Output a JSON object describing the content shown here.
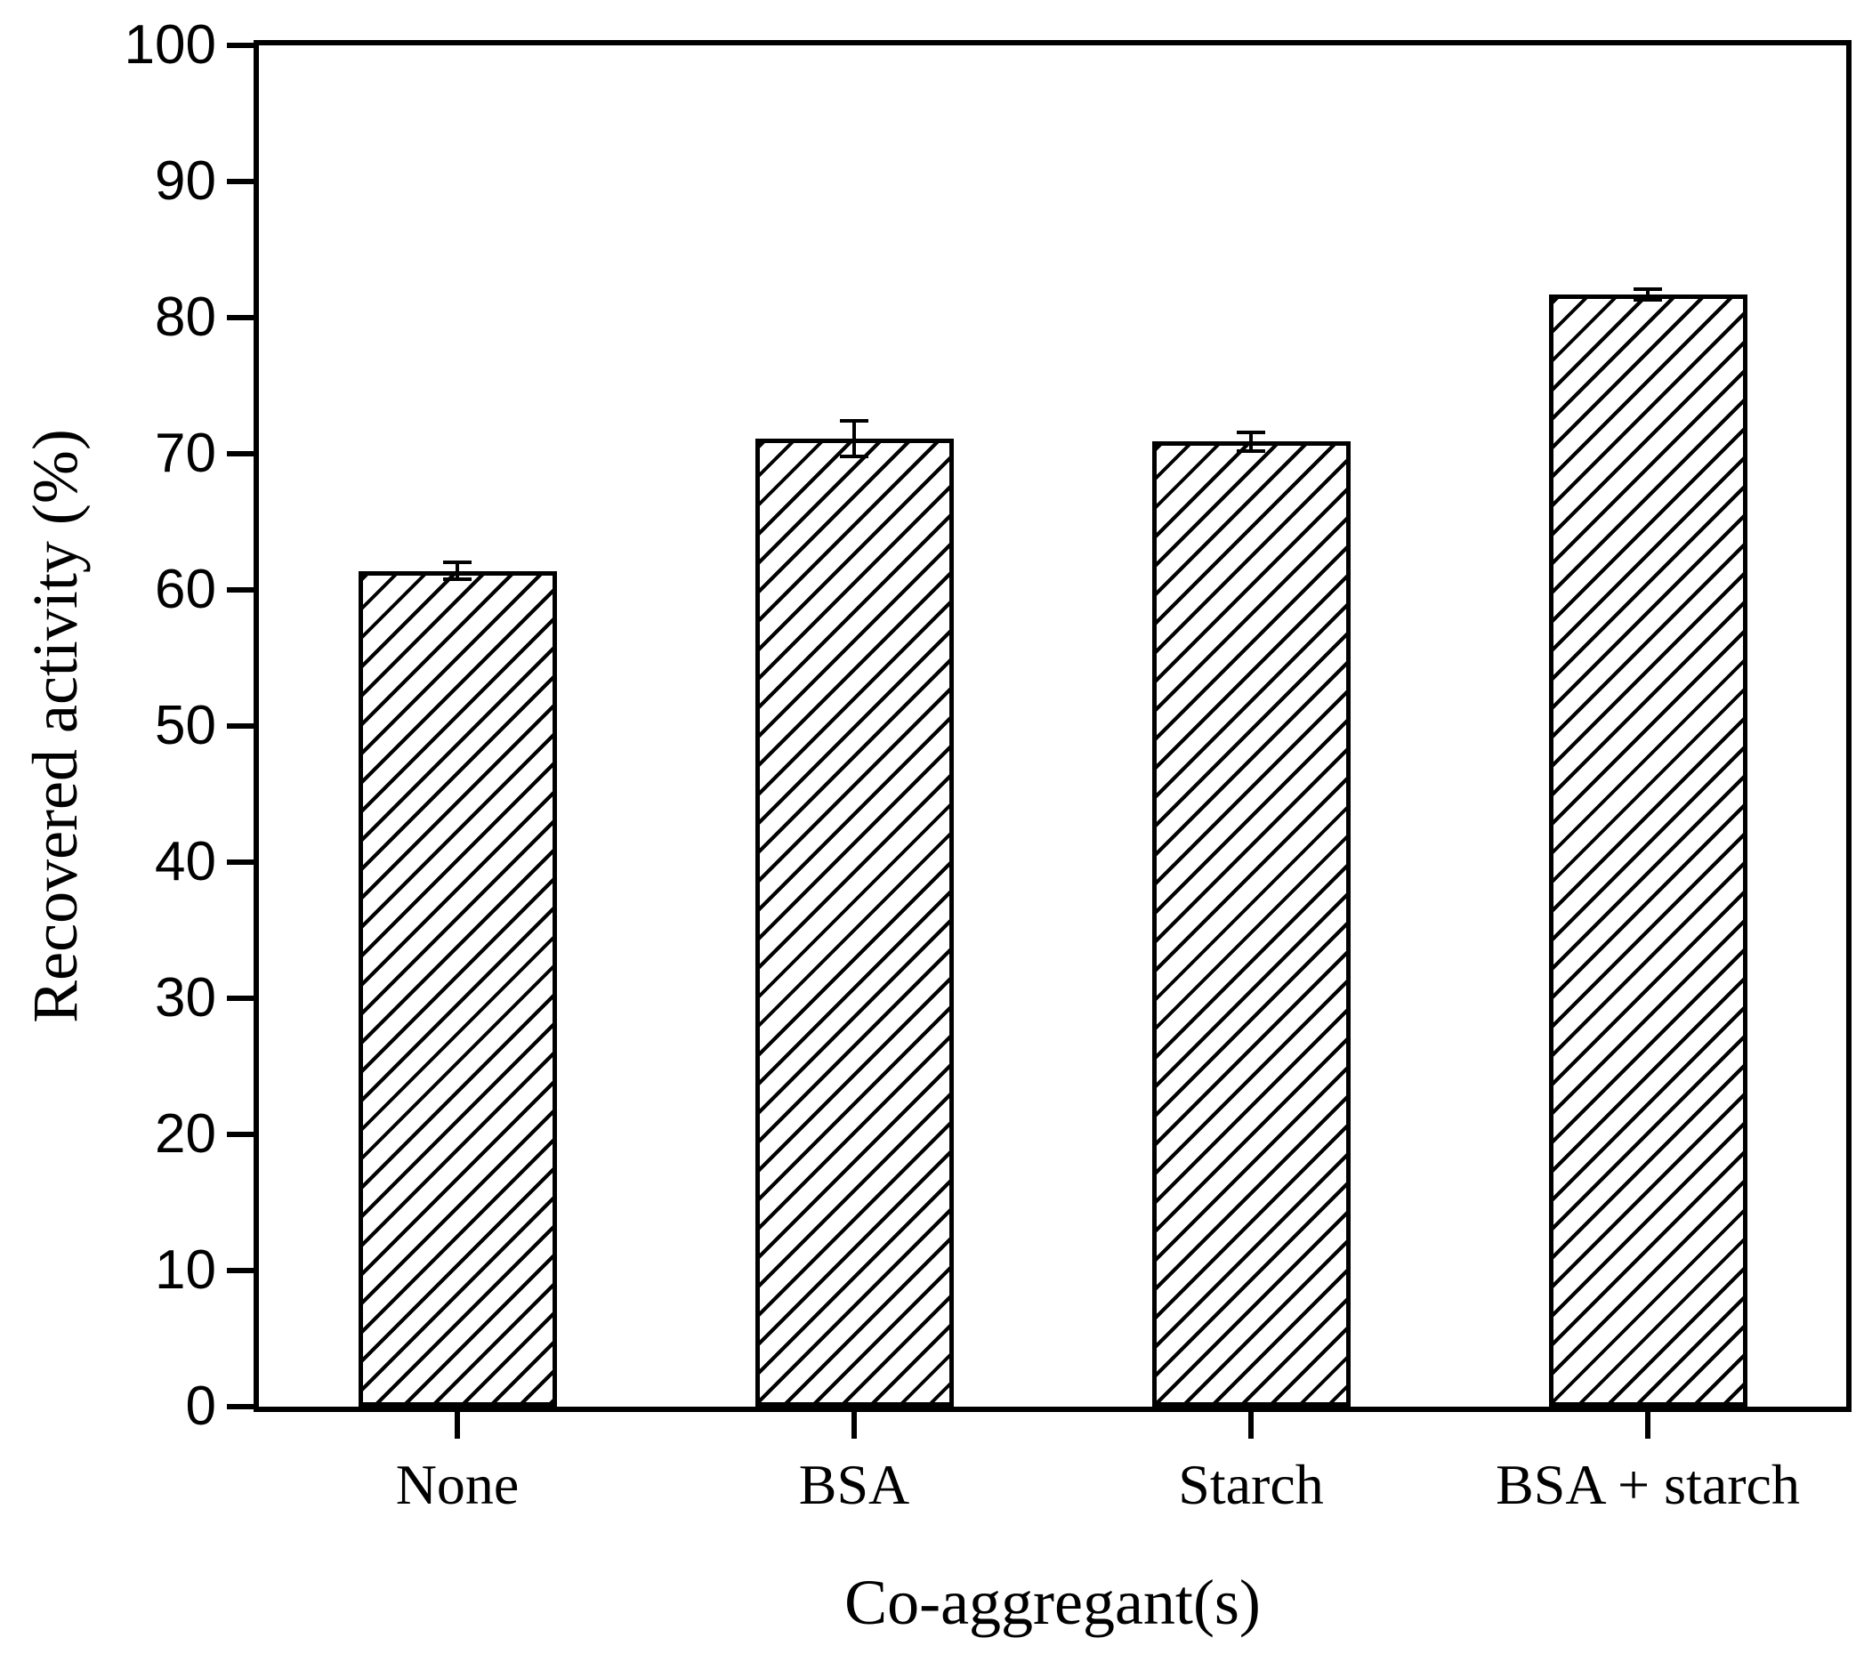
{
  "figure": {
    "background": "#ffffff",
    "axis_color": "#000000"
  },
  "chart_data": {
    "type": "bar",
    "title": "",
    "xlabel": "Co-aggregant(s)",
    "ylabel": "Recovered activity (%)",
    "categories": [
      "None",
      "BSA",
      "Starch",
      "BSA + starch"
    ],
    "values": [
      61.4,
      71.1,
      70.9,
      81.7
    ],
    "errors": [
      0.6,
      1.3,
      0.7,
      0.4
    ],
    "ylim": [
      0,
      100
    ],
    "ytick_step": 10,
    "yticks": [
      0,
      10,
      20,
      30,
      40,
      50,
      60,
      70,
      80,
      90,
      100
    ],
    "grid": false,
    "legend": "none",
    "bar_style": {
      "fill": "#ffffff",
      "hatch": "/",
      "edge_color": "#000000",
      "bar_width_fraction": 0.5
    }
  }
}
